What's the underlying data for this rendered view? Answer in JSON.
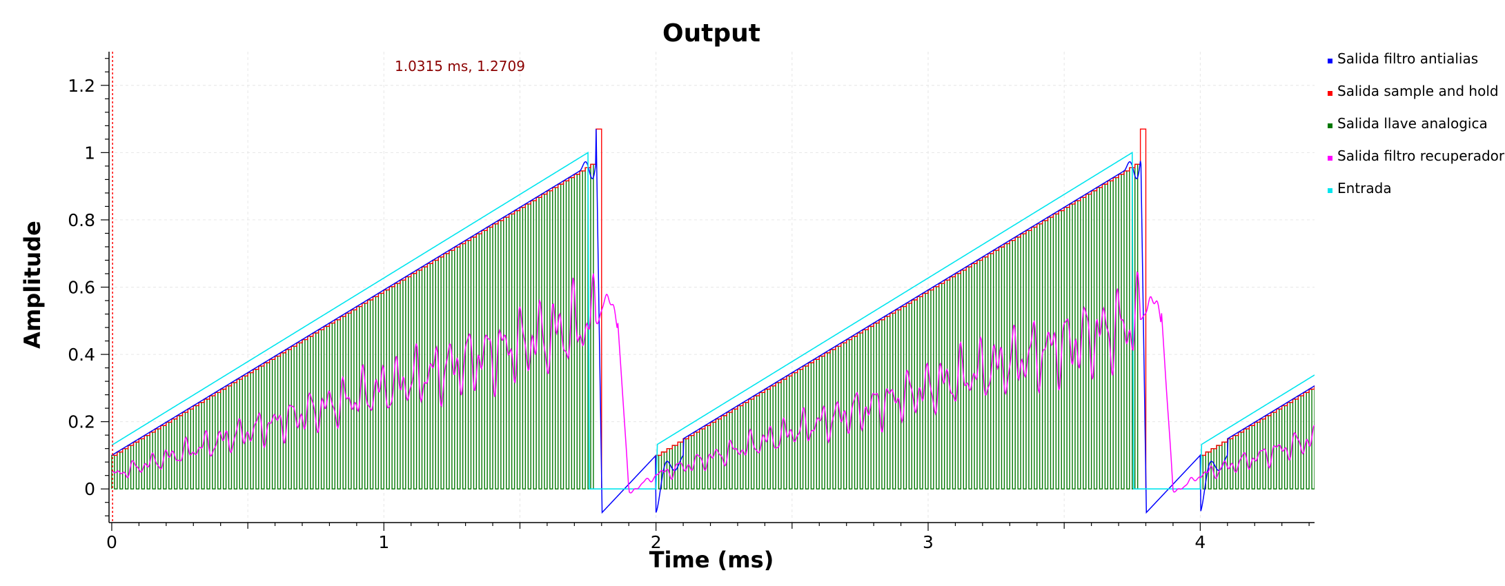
{
  "chart_data": {
    "type": "line",
    "title": "Output",
    "xlabel": "Time (ms)",
    "ylabel": "Amplitude",
    "xlim": [
      -0.01,
      4.42
    ],
    "ylim": [
      -0.1,
      1.3
    ],
    "x_ticks": [
      0,
      1,
      2,
      3,
      4
    ],
    "x_tick_labels": [
      "0",
      "1",
      "2",
      "3",
      "4"
    ],
    "y_ticks": [
      0,
      0.2,
      0.4,
      0.6,
      0.8,
      1,
      1.2
    ],
    "y_tick_labels": [
      "0",
      "0.2",
      "0.4",
      "0.6",
      "0.8",
      "1",
      "1.2"
    ],
    "grid": true,
    "legend_position": "right",
    "cursor_marker": {
      "x": 0.003,
      "text": "1.0315 ms, 1.2709",
      "color": "#ff0000"
    },
    "signal": {
      "period_ms": 2.0,
      "ramp_end_ms": 1.78,
      "sample_period_ms": 0.02,
      "duty": 0.5
    },
    "series": [
      {
        "name": "Salida filtro antialias",
        "color": "#0000ff",
        "description_points": {
          "x": [
            0,
            1.78,
            1.8,
            1.82,
            2.0,
            3.78,
            3.8,
            3.82,
            4.42
          ],
          "y": [
            0.1,
            0.98,
            1.07,
            -0.07,
            0.1,
            0.98,
            1.07,
            -0.07,
            0.31
          ]
        }
      },
      {
        "name": "Salida sample and hold",
        "color": "#ff0000",
        "description_points": {
          "x": [
            0,
            1.78,
            1.79,
            1.8,
            2.0,
            3.78,
            3.79,
            3.8,
            4.42
          ],
          "y": [
            0.1,
            0.97,
            1.07,
            0.0,
            0.1,
            0.97,
            1.07,
            0.0,
            0.31
          ]
        }
      },
      {
        "name": "Salida llave analogica",
        "color": "#007700",
        "description_points": {
          "x": [
            0,
            1.78,
            2.0,
            3.78,
            4.42
          ],
          "y": [
            0.1,
            0.97,
            0.1,
            0.97,
            0.31
          ]
        }
      },
      {
        "name": "Salida filtro recuperador",
        "color": "#ff00ff",
        "description_points": {
          "x": [
            0,
            0.5,
            1.0,
            1.5,
            1.78,
            1.84,
            1.88,
            2.0,
            2.5,
            3.0,
            3.5,
            3.78,
            3.84,
            3.88,
            4.42
          ],
          "y": [
            0.04,
            0.12,
            0.25,
            0.4,
            0.5,
            0.56,
            0.0,
            0.03,
            0.12,
            0.25,
            0.4,
            0.5,
            0.56,
            0.0,
            0.14
          ]
        }
      },
      {
        "name": "Entrada",
        "color": "#00e5ee",
        "description_points": {
          "x": [
            0,
            1.75,
            1.75,
            2.0,
            3.75,
            3.75,
            4.42
          ],
          "y": [
            0.13,
            1.0,
            0.0,
            0.13,
            1.0,
            0.0,
            0.34
          ]
        }
      }
    ]
  }
}
